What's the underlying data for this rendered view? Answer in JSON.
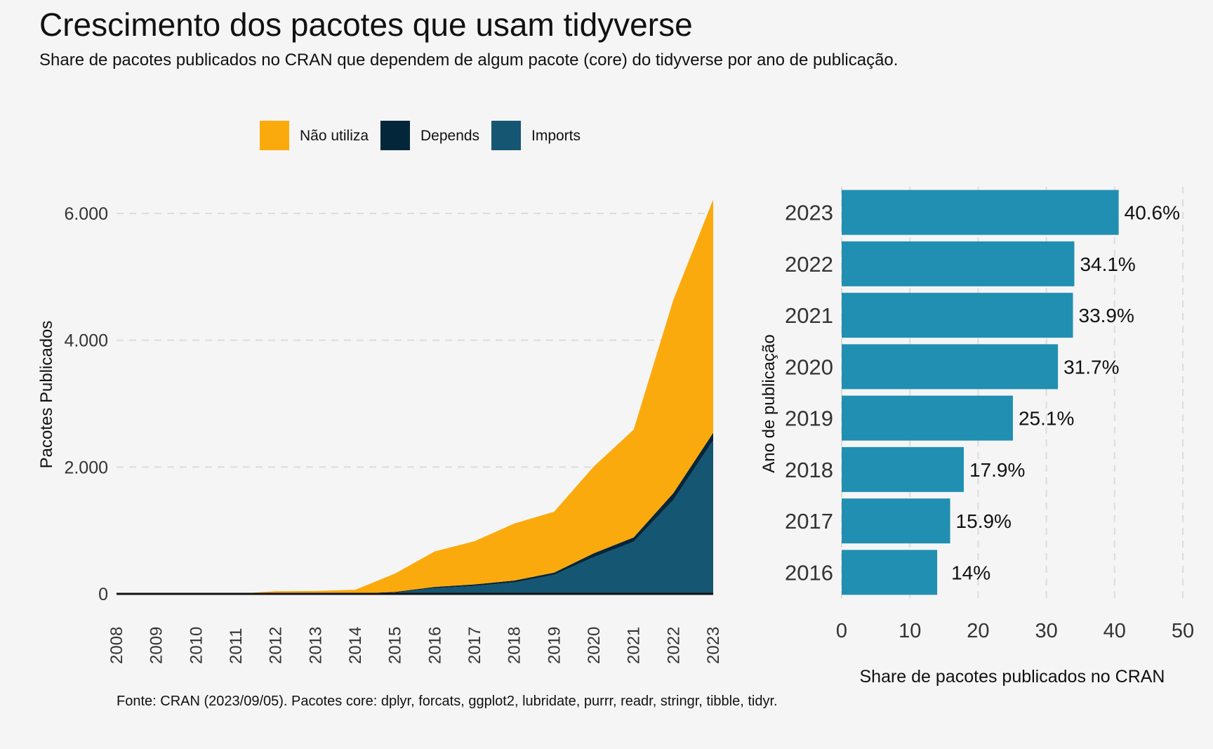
{
  "title": "Crescimento dos pacotes que usam tidyverse",
  "subtitle": "Share de pacotes publicados no CRAN que dependem de algum pacote (core) do tidyverse por ano de publicação.",
  "caption": "Fonte: CRAN (2023/09/05). Pacotes core: dplyr, forcats, ggplot2, lubridate, purrr, readr, stringr, tibble, tidyr.",
  "colors": {
    "nao_utiliza": "#fbaa0e",
    "depends": "#04263b",
    "imports": "#155673",
    "bar": "#218fb1",
    "grid": "#dcdcdc",
    "background": "#f5f5f5"
  },
  "chart_data": [
    {
      "type": "area",
      "stacked": true,
      "ylabel": "Pacotes Publicados",
      "xlabel": "",
      "x": [
        2008,
        2009,
        2010,
        2011,
        2012,
        2013,
        2014,
        2015,
        2016,
        2017,
        2018,
        2019,
        2020,
        2021,
        2022,
        2023
      ],
      "x_tick_labels": [
        "2008",
        "2009",
        "2010",
        "2011",
        "2012",
        "2013",
        "2014",
        "2015",
        "2016",
        "2017",
        "2018",
        "2019",
        "2020",
        "2021",
        "2022",
        "2023"
      ],
      "y_ticks": [
        0,
        2000,
        4000,
        6000
      ],
      "y_tick_labels": [
        "0",
        "2.000",
        "4.000",
        "6.000"
      ],
      "ylim": [
        0,
        6200
      ],
      "grid": true,
      "legend_position": "top",
      "series": [
        {
          "name": "Imports",
          "values": [
            0,
            0,
            0,
            0,
            0,
            0,
            0,
            20,
            90,
            125,
            180,
            300,
            580,
            820,
            1480,
            2420
          ]
        },
        {
          "name": "Depends",
          "values": [
            0,
            0,
            0,
            0,
            2,
            3,
            5,
            10,
            20,
            25,
            30,
            35,
            60,
            70,
            110,
            120
          ]
        },
        {
          "name": "Não utiliza",
          "values": [
            0,
            0,
            0,
            0,
            40,
            42,
            60,
            290,
            560,
            680,
            900,
            960,
            1370,
            1700,
            3050,
            3680
          ]
        }
      ],
      "legend_order": [
        "Não utiliza",
        "Depends",
        "Imports"
      ]
    },
    {
      "type": "bar",
      "orientation": "horizontal",
      "xlabel": "Share de pacotes publicados no CRAN",
      "ylabel": "Ano de publicação",
      "categories": [
        "2023",
        "2022",
        "2021",
        "2020",
        "2019",
        "2018",
        "2017",
        "2016"
      ],
      "values": [
        40.6,
        34.1,
        33.9,
        31.7,
        25.1,
        17.9,
        15.9,
        14
      ],
      "value_labels": [
        "40.6%",
        "34.1%",
        "33.9%",
        "31.7%",
        "25.1%",
        "17.9%",
        "15.9%",
        "14%"
      ],
      "x_ticks": [
        0,
        10,
        20,
        30,
        40,
        50
      ],
      "xlim": [
        0,
        50
      ],
      "grid": true
    }
  ]
}
